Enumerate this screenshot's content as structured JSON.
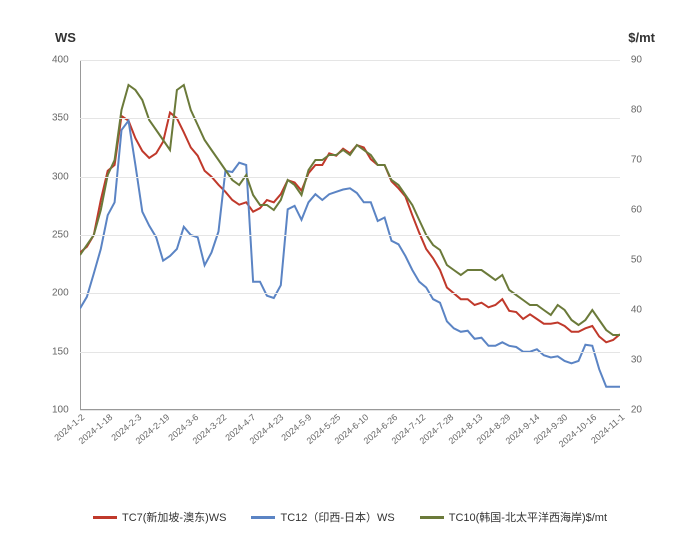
{
  "chart": {
    "type": "line",
    "left_axis_label": "WS",
    "right_axis_label": "$/mt",
    "left_axis": {
      "min": 100,
      "max": 400,
      "ticks": [
        100,
        150,
        200,
        250,
        300,
        350,
        400
      ]
    },
    "right_axis": {
      "min": 20,
      "max": 90,
      "ticks": [
        20,
        30,
        40,
        50,
        60,
        70,
        80,
        90
      ]
    },
    "x_labels": [
      "2024-1-2",
      "2024-1-18",
      "2024-2-3",
      "2024-2-19",
      "2024-3-6",
      "2024-3-22",
      "2024-4-7",
      "2024-4-23",
      "2024-5-9",
      "2024-5-25",
      "2024-6-10",
      "2024-6-26",
      "2024-7-12",
      "2024-7-28",
      "2024-8-13",
      "2024-8-29",
      "2024-9-14",
      "2024-9-30",
      "2024-10-16",
      "2024-11-1"
    ],
    "background_color": "#ffffff",
    "grid_color": "#e5e5e5",
    "axis_color": "#999999",
    "tick_fontsize": 10,
    "label_fontsize": 13,
    "series": [
      {
        "name": "TC7(新加坡-澳东)WS",
        "color": "#c0392b",
        "axis": "left",
        "values": [
          235,
          240,
          250,
          280,
          305,
          310,
          352,
          348,
          333,
          322,
          316,
          320,
          330,
          355,
          350,
          338,
          325,
          318,
          305,
          300,
          293,
          287,
          280,
          276,
          278,
          270,
          273,
          280,
          278,
          285,
          297,
          295,
          288,
          303,
          310,
          310,
          320,
          318,
          324,
          320,
          327,
          325,
          315,
          310,
          310,
          296,
          290,
          283,
          267,
          252,
          238,
          230,
          220,
          205,
          200,
          195,
          195,
          190,
          192,
          188,
          190,
          195,
          185,
          184,
          178,
          182,
          178,
          174,
          174,
          175,
          172,
          167,
          167,
          170,
          172,
          163,
          158,
          160,
          165
        ]
      },
      {
        "name": "TC12（印西-日本）WS",
        "color": "#5b84c4",
        "axis": "left",
        "values": [
          187,
          197,
          217,
          238,
          267,
          278,
          340,
          348,
          310,
          270,
          258,
          248,
          228,
          232,
          238,
          257,
          250,
          248,
          224,
          235,
          253,
          305,
          304,
          312,
          310,
          210,
          210,
          198,
          196,
          207,
          272,
          275,
          263,
          278,
          285,
          280,
          285,
          287,
          289,
          290,
          286,
          278,
          278,
          262,
          265,
          245,
          242,
          232,
          220,
          210,
          205,
          195,
          192,
          176,
          170,
          167,
          168,
          161,
          162,
          155,
          155,
          158,
          155,
          154,
          150,
          150,
          152,
          147,
          145,
          146,
          142,
          140,
          142,
          156,
          155,
          135,
          120,
          120,
          120
        ]
      },
      {
        "name": "TC10(韩国-北太平洋西海岸)$/mt",
        "color": "#6b7a3a",
        "axis": "right",
        "values": [
          51,
          53,
          55,
          60,
          67,
          70,
          80,
          85,
          84,
          82,
          78,
          76,
          74,
          72,
          84,
          85,
          80,
          77,
          74,
          72,
          70,
          68,
          66,
          65,
          67,
          63,
          61,
          61,
          60,
          62,
          66,
          65,
          63,
          68,
          70,
          70,
          71,
          71,
          72,
          71,
          73,
          72,
          71,
          69,
          69,
          66,
          65,
          63,
          61,
          58,
          55,
          53,
          52,
          49,
          48,
          47,
          48,
          48,
          48,
          47,
          46,
          47,
          44,
          43,
          42,
          41,
          41,
          40,
          39,
          41,
          40,
          38,
          37,
          38,
          40,
          38,
          36,
          35,
          35
        ]
      }
    ],
    "legend_position": "bottom"
  }
}
